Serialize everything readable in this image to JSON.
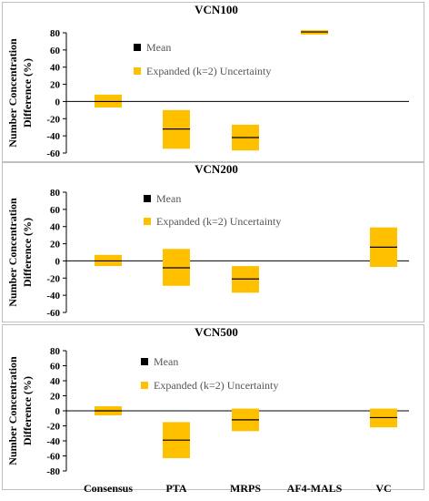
{
  "chart_data": [
    {
      "type": "box",
      "title": "VCN100",
      "ylabel": "Number Concentration Difference (%)",
      "ylim": [
        -60,
        80
      ],
      "yticks": [
        80,
        60,
        40,
        20,
        0,
        -20,
        -40,
        -60
      ],
      "legend": {
        "mean": "Mean",
        "uncertainty": "Expanded (k=2) Uncertainty"
      },
      "boxes": [
        {
          "category": "Consensus",
          "mean": 0,
          "low": -7,
          "high": 8
        },
        {
          "category": "PTA",
          "mean": -32,
          "low": -55,
          "high": -10
        },
        {
          "category": "MRPS",
          "mean": -42,
          "low": -57,
          "high": -27
        },
        {
          "category": "AF4-MALS",
          "mean": 81,
          "low": 78,
          "high": 83
        }
      ]
    },
    {
      "type": "box",
      "title": "VCN200",
      "ylabel": "Number Concentration Difference (%)",
      "ylim": [
        -60,
        80
      ],
      "yticks": [
        80,
        60,
        40,
        20,
        0,
        -20,
        -40,
        -60
      ],
      "legend": {
        "mean": "Mean",
        "uncertainty": "Expanded (k=2) Uncertainty"
      },
      "boxes": [
        {
          "category": "Consensus",
          "mean": 0,
          "low": -6,
          "high": 7
        },
        {
          "category": "PTA",
          "mean": -8,
          "low": -29,
          "high": 14
        },
        {
          "category": "MRPS",
          "mean": -21,
          "low": -37,
          "high": -6
        },
        {
          "category": "VC",
          "mean": 16,
          "low": -7,
          "high": 39
        }
      ]
    },
    {
      "type": "box",
      "title": "VCN500",
      "ylabel": "Number Concentration Difference (%)",
      "ylim": [
        -80,
        80
      ],
      "yticks": [
        80,
        60,
        40,
        20,
        0,
        -20,
        -40,
        -60,
        -80
      ],
      "legend": {
        "mean": "Mean",
        "uncertainty": "Expanded (k=2) Uncertainty"
      },
      "boxes": [
        {
          "category": "Consensus",
          "mean": 0,
          "low": -6,
          "high": 6
        },
        {
          "category": "PTA",
          "mean": -39,
          "low": -63,
          "high": -15
        },
        {
          "category": "MRPS",
          "mean": -12,
          "low": -27,
          "high": 3
        },
        {
          "category": "VC",
          "mean": -9,
          "low": -22,
          "high": 3
        }
      ]
    }
  ],
  "x_categories": [
    "Consensus",
    "PTA",
    "MRPS",
    "AF4-MALS",
    "VC"
  ],
  "colors": {
    "box": "#FFC000",
    "mean_line": "#000000",
    "frame": "#BFBFBF"
  }
}
